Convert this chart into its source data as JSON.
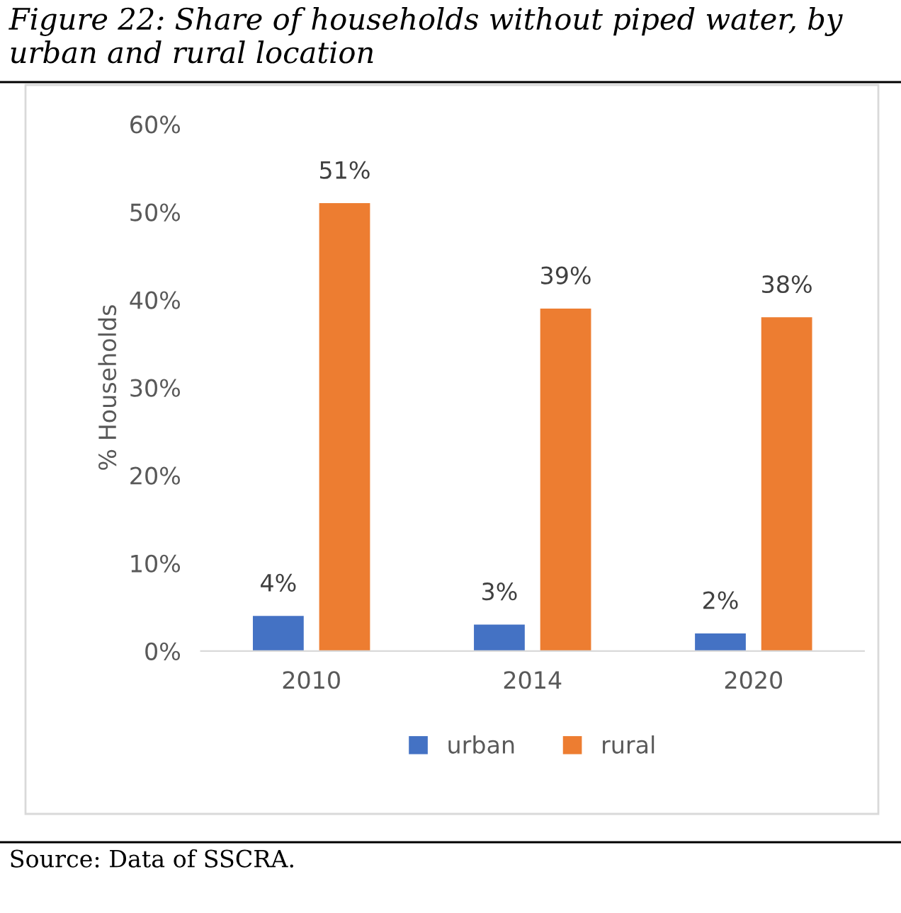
{
  "chart_data": {
    "type": "bar",
    "title": "Figure 22: Share of households without piped water, by urban and rural location",
    "ylabel": "% Households",
    "categories": [
      "2010",
      "2014",
      "2020"
    ],
    "series": [
      {
        "name": "urban",
        "color": "#4472c4",
        "values": [
          4,
          3,
          2
        ],
        "value_labels": [
          "4%",
          "3%",
          "2%"
        ]
      },
      {
        "name": "rural",
        "color": "#ed7d31",
        "values": [
          51,
          39,
          38
        ],
        "value_labels": [
          "51%",
          "39%",
          "38%"
        ]
      }
    ],
    "ylim": [
      0,
      60
    ],
    "yticks": [
      {
        "value": 0,
        "label": "0%"
      },
      {
        "value": 10,
        "label": "10%"
      },
      {
        "value": 20,
        "label": "20%"
      },
      {
        "value": 30,
        "label": "30%"
      },
      {
        "value": 40,
        "label": "40%"
      },
      {
        "value": 50,
        "label": "50%"
      },
      {
        "value": 60,
        "label": "60%"
      }
    ],
    "grid": false,
    "legend": "bottom",
    "annotations": [
      "Source: Data of SSCRA."
    ]
  }
}
